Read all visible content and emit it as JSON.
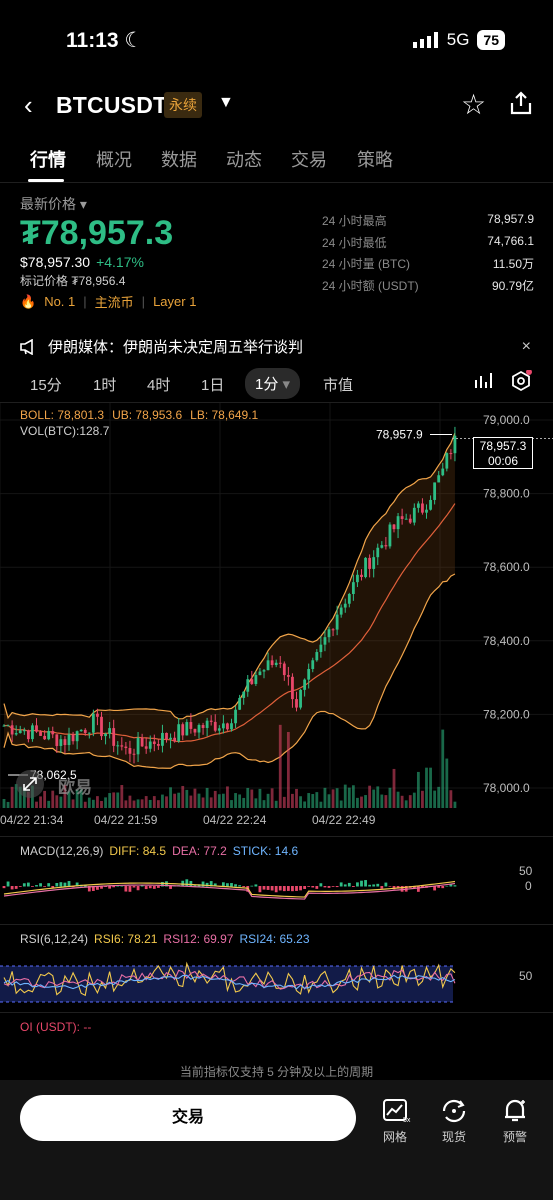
{
  "status_bar": {
    "time": "11:13",
    "network": "5G",
    "battery": "75"
  },
  "header": {
    "symbol": "BTCUSDT",
    "badge": "永续"
  },
  "tabs": [
    {
      "label": "行情",
      "active": true
    },
    {
      "label": "概况"
    },
    {
      "label": "数据"
    },
    {
      "label": "动态"
    },
    {
      "label": "交易"
    },
    {
      "label": "策略"
    }
  ],
  "price": {
    "label": "最新价格",
    "last": "₮78,957.3",
    "usd": "$78,957.30",
    "change": "+4.17%",
    "mark": "标记价格 ₮78,956.4",
    "tags": [
      "No. 1",
      "主流币",
      "Layer 1"
    ]
  },
  "stats": [
    {
      "k": "24 小时最高",
      "v": "78,957.9"
    },
    {
      "k": "24 小时最低",
      "v": "74,766.1"
    },
    {
      "k": "24 小时量 (BTC)",
      "v": "11.50万"
    },
    {
      "k": "24 小时额 (USDT)",
      "v": "90.79亿"
    }
  ],
  "news": {
    "text": "伊朗媒体：伊朗尚未决定周五举行谈判",
    "close": "×"
  },
  "intervals": [
    {
      "label": "15分"
    },
    {
      "label": "1时"
    },
    {
      "label": "4时"
    },
    {
      "label": "1日"
    },
    {
      "label": "1分",
      "active": true
    },
    {
      "label": "市值"
    }
  ],
  "indicators": {
    "boll": {
      "name": "BOLL: 78,801.3",
      "ub": "UB: 78,953.6",
      "lb": "LB: 78,649.1"
    },
    "vol": "VOL(BTC):128.7",
    "macd": {
      "name": "MACD(12,26,9)",
      "diff": "DIFF: 84.5",
      "dea": "DEA: 77.2",
      "stick": "STICK: 14.6"
    },
    "rsi": {
      "name": "RSI(6,12,24)",
      "rsi6": "RSI6: 78.21",
      "rsi12": "RSI12: 69.97",
      "rsi24": "RSI24: 65.23"
    },
    "oi": "OI (USDT): --"
  },
  "price_tag": {
    "price": "78,957.3",
    "countdown": "00:06"
  },
  "high_marker": "78,957.9",
  "low_marker": "78,062.5",
  "watermark": "欧易",
  "chart_data": {
    "type": "candlestick",
    "y_axis_ticks": [
      "79,000.0",
      "78,800.0",
      "78,600.0",
      "78,400.0",
      "78,200.0",
      "78,000.0"
    ],
    "y_ticks_values": [
      79000,
      78800,
      78600,
      78400,
      78200,
      78000
    ],
    "x_axis_ticks": [
      "04/22 21:34",
      "04/22 21:59",
      "04/22 22:24",
      "04/22 22:49"
    ],
    "macd_ticks": [
      "50",
      "0"
    ],
    "rsi_ticks": [
      "50"
    ],
    "last_price": 78957.3,
    "high": 78957.9,
    "low": 78062.5
  },
  "note": "当前指标仅支持 5 分钟及以上的周期",
  "bottom": {
    "trade": "交易",
    "icons": [
      {
        "label": "网格"
      },
      {
        "label": "现货"
      },
      {
        "label": "预警"
      }
    ]
  },
  "colors": {
    "up": "#2ebd85",
    "down": "#e8476a",
    "boll": "#f2a54a",
    "accent": "#e9a33a"
  }
}
